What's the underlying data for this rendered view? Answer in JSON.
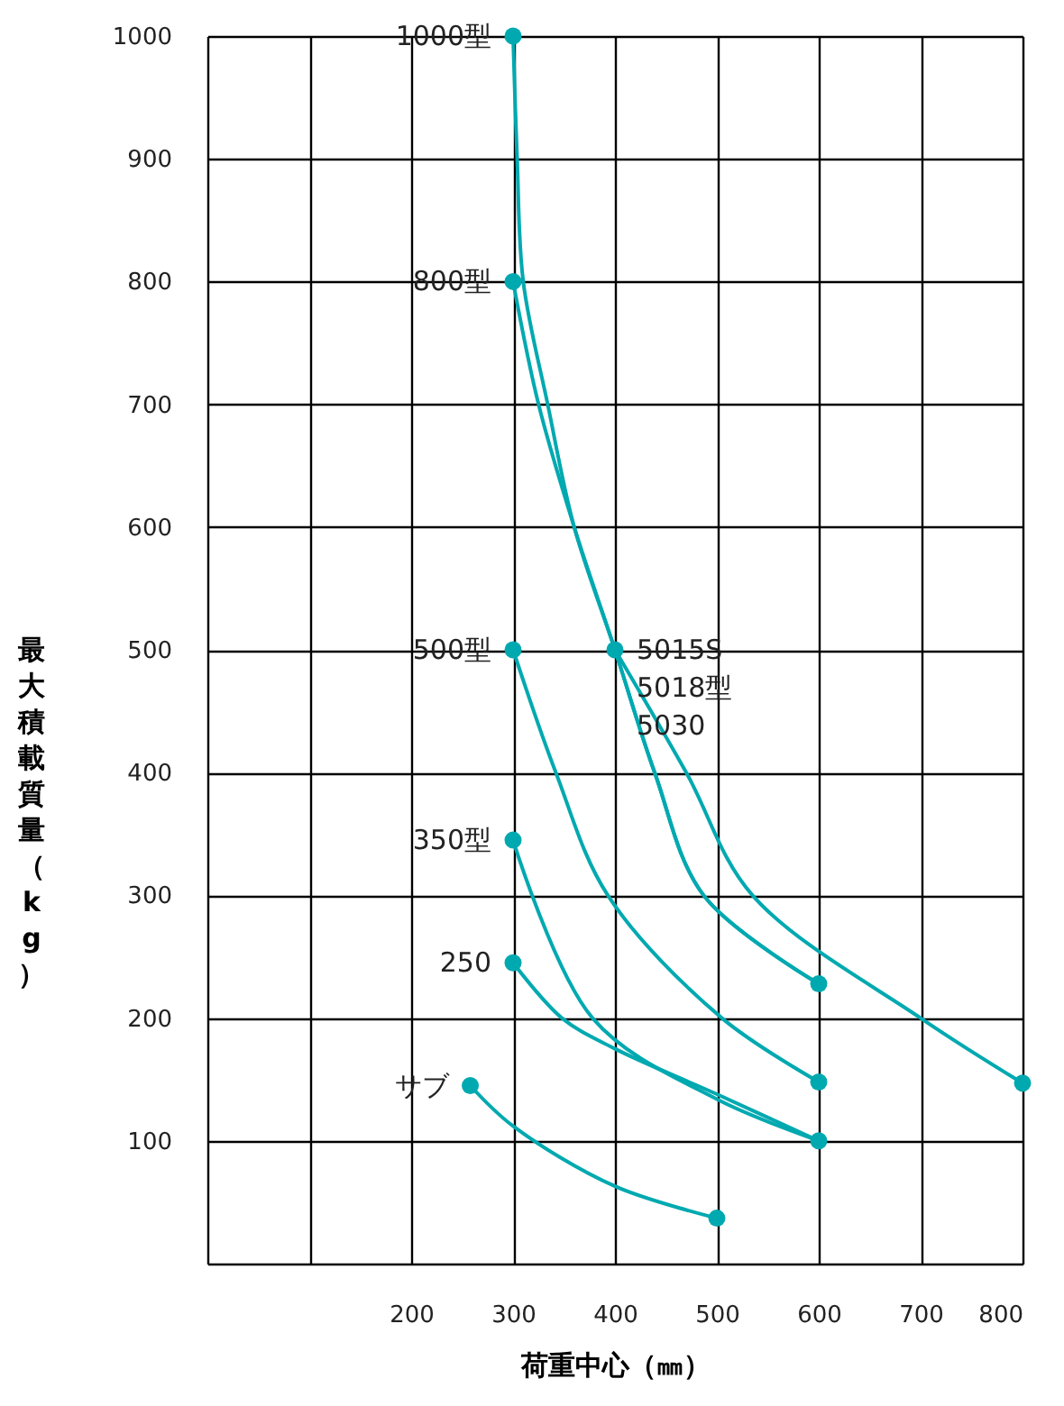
{
  "chart_data": {
    "type": "line",
    "xlabel": "荷重中心（㎜）",
    "ylabel": "最大積載質量（kg）",
    "xlim": [
      0,
      800
    ],
    "xticks": [
      {
        "value": 0,
        "label": null
      },
      {
        "value": 100,
        "label": null
      },
      200,
      300,
      400,
      500,
      600,
      700,
      800
    ],
    "ylim": [
      0,
      1000
    ],
    "yticks": [
      {
        "value": 0,
        "label": null
      },
      100,
      200,
      300,
      400,
      500,
      600,
      700,
      800,
      900,
      1000
    ],
    "grid": true,
    "line_style": "solid",
    "series": [
      {
        "name": "1000型",
        "color": "#00a9b0",
        "x": [
          300,
          304,
          310,
          334,
          360,
          400,
          439,
          487,
          600
        ],
        "values": [
          1000,
          900,
          800,
          700,
          600,
          500,
          400,
          300,
          228
        ]
      },
      {
        "name": "800型",
        "color": "#00a9b0",
        "x": [
          300,
          325,
          360,
          400,
          439,
          487,
          600
        ],
        "values": [
          800,
          700,
          600,
          500,
          400,
          300,
          228
        ]
      },
      {
        "name": "5015S\n5018型\n5030",
        "color": "#00a9b0",
        "x": [
          400,
          470,
          535,
          700,
          800
        ],
        "values": [
          500,
          400,
          300,
          200,
          147
        ]
      },
      {
        "name": "500型",
        "color": "#00a9b0",
        "x": [
          300,
          342,
          393,
          505,
          600
        ],
        "values": [
          500,
          400,
          300,
          200,
          148
        ]
      },
      {
        "name": "350型",
        "color": "#00a9b0",
        "x": [
          300,
          378,
          500,
          600
        ],
        "values": [
          345,
          200,
          134,
          100
        ]
      },
      {
        "name": "250",
        "color": "#00a9b0",
        "x": [
          300,
          348,
          400,
          500,
          600
        ],
        "values": [
          245,
          200,
          175,
          138,
          100
        ]
      },
      {
        "name": "サブ",
        "color": "#00a9b0",
        "x": [
          258,
          300,
          400,
          500
        ],
        "values": [
          145,
          112,
          63,
          37
        ]
      },
      {
        "type": "scatter",
        "color": "#00a9b0",
        "x": [
          300,
          300,
          300,
          300,
          300,
          258,
          400,
          600,
          600,
          600,
          500,
          800
        ],
        "values": [
          1000,
          800,
          500,
          345,
          245,
          145,
          500,
          228,
          148,
          100,
          37,
          147
        ]
      }
    ]
  }
}
